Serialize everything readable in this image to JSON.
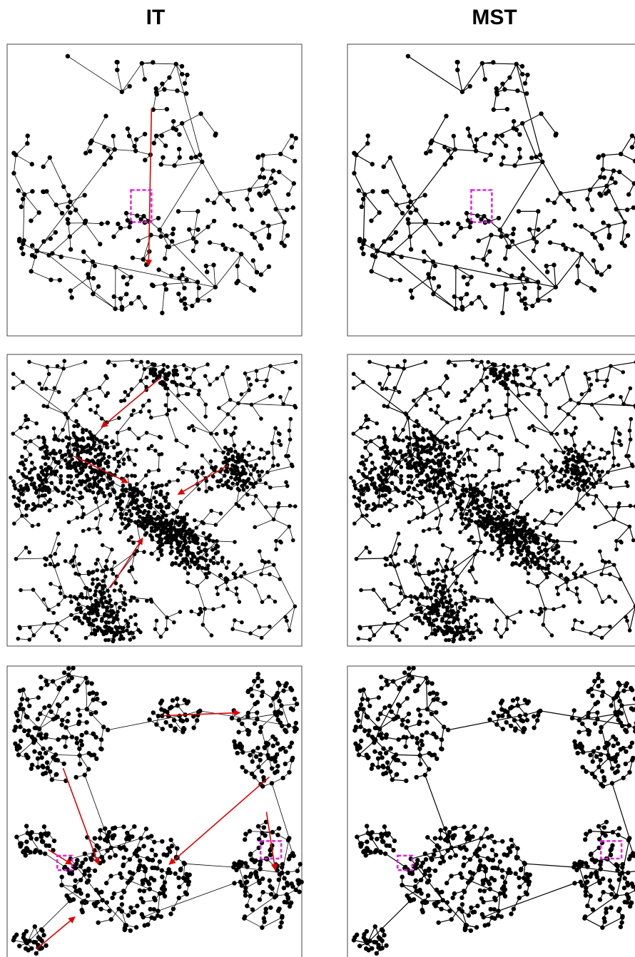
{
  "columns": [
    "IT",
    "MST"
  ]
}
